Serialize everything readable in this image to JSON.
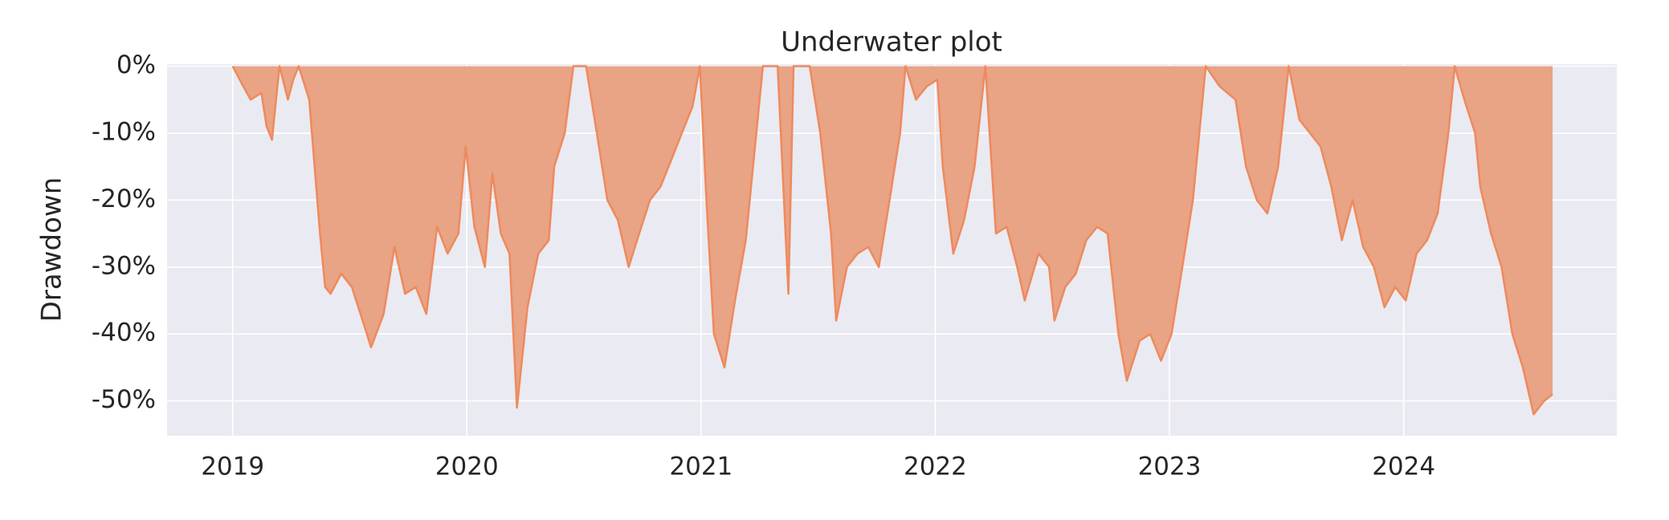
{
  "chart_data": {
    "type": "area",
    "title": "Underwater plot",
    "y_label": "Drawdown",
    "x": [
      2019.0,
      2019.045,
      2019.077,
      2019.123,
      2019.145,
      2019.168,
      2019.2,
      2019.236,
      2019.259,
      2019.282,
      2019.327,
      2019.35,
      2019.373,
      2019.395,
      2019.418,
      2019.464,
      2019.509,
      2019.555,
      2019.591,
      2019.645,
      2019.691,
      2019.736,
      2019.782,
      2019.827,
      2019.873,
      2019.918,
      2019.964,
      2019.995,
      2020.032,
      2020.077,
      2020.109,
      2020.145,
      2020.182,
      2020.214,
      2020.259,
      2020.305,
      2020.35,
      2020.373,
      2020.418,
      2020.455,
      2020.509,
      2020.555,
      2020.6,
      2020.645,
      2020.691,
      2020.736,
      2020.782,
      2020.827,
      2020.873,
      2020.918,
      2020.964,
      2020.995,
      2021.023,
      2021.055,
      2021.1,
      2021.145,
      2021.191,
      2021.236,
      2021.264,
      2021.327,
      2021.373,
      2021.395,
      2021.464,
      2021.509,
      2021.555,
      2021.577,
      2021.623,
      2021.668,
      2021.714,
      2021.759,
      2021.805,
      2021.85,
      2021.873,
      2021.918,
      2021.964,
      2022.009,
      2022.032,
      2022.077,
      2022.123,
      2022.168,
      2022.214,
      2022.259,
      2022.305,
      2022.35,
      2022.382,
      2022.441,
      2022.486,
      2022.509,
      2022.555,
      2022.6,
      2022.645,
      2022.691,
      2022.736,
      2022.782,
      2022.818,
      2022.873,
      2022.918,
      2022.964,
      2023.009,
      2023.055,
      2023.1,
      2023.155,
      2023.214,
      2023.282,
      2023.327,
      2023.373,
      2023.418,
      2023.464,
      2023.509,
      2023.555,
      2023.6,
      2023.645,
      2023.691,
      2023.736,
      2023.782,
      2023.827,
      2023.873,
      2023.918,
      2023.964,
      2024.009,
      2024.055,
      2024.1,
      2024.145,
      2024.191,
      2024.218,
      2024.259,
      2024.305,
      2024.327,
      2024.373,
      2024.418,
      2024.464,
      2024.509,
      2024.555,
      2024.6,
      2024.636
    ],
    "values": [
      0,
      -3,
      -5,
      -4,
      -9,
      -11,
      0,
      -5,
      -2,
      0,
      -5,
      -15,
      -25,
      -33,
      -34,
      -31,
      -33,
      -38,
      -42,
      -37,
      -27,
      -34,
      -33,
      -37,
      -24,
      -28,
      -25,
      -12,
      -24,
      -30,
      -16,
      -25,
      -28,
      -51,
      -36,
      -28,
      -26,
      -15,
      -10,
      0,
      0,
      -10,
      -20,
      -23,
      -30,
      -25,
      -20,
      -18,
      -14,
      -10,
      -6,
      0,
      -20,
      -40,
      -45,
      -35,
      -26,
      -10,
      0,
      0,
      -34,
      0,
      0,
      -10,
      -25,
      -38,
      -30,
      -28,
      -27,
      -30,
      -20,
      -10,
      0,
      -5,
      -3,
      -2,
      -15,
      -28,
      -23,
      -15,
      0,
      -25,
      -24,
      -30,
      -35,
      -28,
      -30,
      -38,
      -33,
      -31,
      -26,
      -24,
      -25,
      -40,
      -47,
      -41,
      -40,
      -44,
      -40,
      -30,
      -20,
      0,
      -3,
      -5,
      -15,
      -20,
      -22,
      -15,
      0,
      -8,
      -10,
      -12,
      -18,
      -26,
      -20,
      -27,
      -30,
      -36,
      -33,
      -35,
      -28,
      -26,
      -22,
      -10,
      0,
      -5,
      -10,
      -18,
      -25,
      -30,
      -40,
      -45,
      -52,
      -50,
      -49
    ],
    "color": "#e9a385",
    "line_color": "#ee8a5c",
    "xlim": [
      2018.72,
      2024.91
    ],
    "xticks": [
      2019,
      2020,
      2021,
      2022,
      2023,
      2024
    ],
    "ylim": [
      -55.2,
      0.3
    ],
    "yticks": [
      {
        "value": 0,
        "label": "0%"
      },
      {
        "value": -10,
        "label": "-10%"
      },
      {
        "value": -20,
        "label": "-20%"
      },
      {
        "value": -30,
        "label": "-30%"
      },
      {
        "value": -40,
        "label": "-40%"
      },
      {
        "value": -50,
        "label": "-50%"
      }
    ],
    "grid": true
  }
}
